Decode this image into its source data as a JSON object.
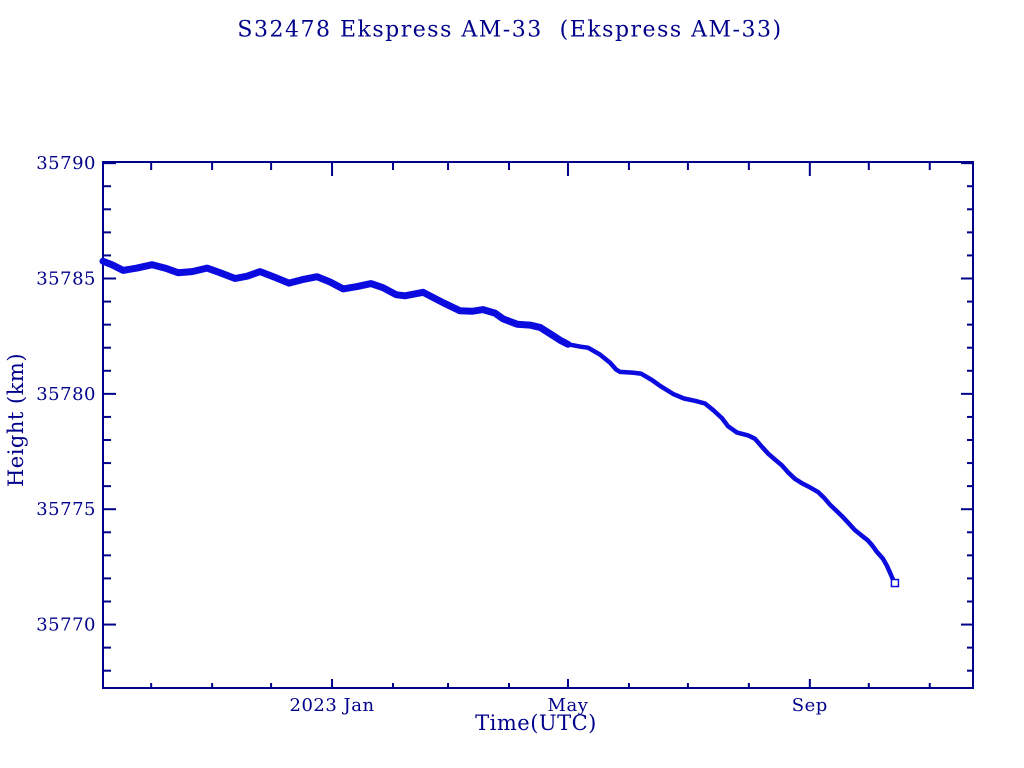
{
  "colors": {
    "background": "#ffffff",
    "axis": "#00008b",
    "text": "#00008b",
    "series": "#0b0bdf"
  },
  "chart_data": {
    "type": "line",
    "title": "S32478 Ekspress AM-33  (Ekspress AM-33)",
    "xlabel": "Time(UTC)",
    "ylabel": "Height (km)",
    "x_unit": "days since 2023-01-01",
    "xlim": [
      -116.5,
      326
    ],
    "ylim": [
      35767.25,
      35790.05
    ],
    "grid": false,
    "legend": "none",
    "x_major_ticks": [
      {
        "day": 0,
        "label": "2023 Jan"
      },
      {
        "day": 120,
        "label": "May"
      },
      {
        "day": 243,
        "label": "Sep"
      }
    ],
    "x_minor_ticks_days": [
      -92,
      -61,
      -31,
      31,
      59,
      90,
      151,
      181,
      212,
      273,
      304
    ],
    "y_major_ticks": [
      35790,
      35785,
      35780,
      35775,
      35770
    ],
    "y_minor_step": 1,
    "series": [
      {
        "name": "height",
        "marker": "open-square",
        "points": [
          [
            -116.5,
            35785.75
          ],
          [
            -111.9,
            35785.6
          ],
          [
            -106.3,
            35785.35
          ],
          [
            -99.2,
            35785.45
          ],
          [
            -91.5,
            35785.6
          ],
          [
            -84.9,
            35785.45
          ],
          [
            -78.3,
            35785.25
          ],
          [
            -71.2,
            35785.3
          ],
          [
            -63.6,
            35785.45
          ],
          [
            -57.0,
            35785.25
          ],
          [
            -49.3,
            35785.0
          ],
          [
            -43.2,
            35785.1
          ],
          [
            -36.6,
            35785.3
          ],
          [
            -29.0,
            35785.05
          ],
          [
            -21.9,
            35784.8
          ],
          [
            -15.3,
            35784.95
          ],
          [
            -7.6,
            35785.08
          ],
          [
            -1.0,
            35784.85
          ],
          [
            5.6,
            35784.55
          ],
          [
            12.7,
            35784.65
          ],
          [
            19.8,
            35784.78
          ],
          [
            25.9,
            35784.6
          ],
          [
            32.6,
            35784.3
          ],
          [
            37.1,
            35784.25
          ],
          [
            46.3,
            35784.4
          ],
          [
            56.5,
            35783.95
          ],
          [
            65.1,
            35783.6
          ],
          [
            71.2,
            35783.58
          ],
          [
            76.8,
            35783.65
          ],
          [
            82.9,
            35783.5
          ],
          [
            87.0,
            35783.25
          ],
          [
            94.1,
            35783.02
          ],
          [
            100.7,
            35782.98
          ],
          [
            105.8,
            35782.88
          ],
          [
            111.9,
            35782.55
          ],
          [
            115.9,
            35782.33
          ],
          [
            120.0,
            35782.15
          ],
          [
            126.1,
            35782.05
          ],
          [
            130.2,
            35782.0
          ],
          [
            136.3,
            35781.7
          ],
          [
            141.4,
            35781.35
          ],
          [
            144.5,
            35781.05
          ],
          [
            146.5,
            35780.95
          ],
          [
            152.6,
            35780.92
          ],
          [
            157.1,
            35780.88
          ],
          [
            162.7,
            35780.6
          ],
          [
            166.8,
            35780.35
          ],
          [
            173.4,
            35780.0
          ],
          [
            179.0,
            35779.8
          ],
          [
            184.6,
            35779.7
          ],
          [
            189.7,
            35779.58
          ],
          [
            193.8,
            35779.3
          ],
          [
            198.3,
            35778.95
          ],
          [
            201.4,
            35778.6
          ],
          [
            206.0,
            35778.32
          ],
          [
            211.6,
            35778.2
          ],
          [
            215.1,
            35778.05
          ],
          [
            218.7,
            35777.7
          ],
          [
            221.7,
            35777.42
          ],
          [
            225.3,
            35777.15
          ],
          [
            228.8,
            35776.9
          ],
          [
            231.9,
            35776.6
          ],
          [
            235.4,
            35776.32
          ],
          [
            239.5,
            35776.1
          ],
          [
            243.0,
            35775.95
          ],
          [
            247.1,
            35775.75
          ],
          [
            250.2,
            35775.5
          ],
          [
            253.2,
            35775.2
          ],
          [
            256.3,
            35774.95
          ],
          [
            259.3,
            35774.7
          ],
          [
            262.4,
            35774.42
          ],
          [
            265.9,
            35774.1
          ],
          [
            269.5,
            35773.85
          ],
          [
            272.5,
            35773.65
          ],
          [
            274.6,
            35773.45
          ],
          [
            277.1,
            35773.15
          ],
          [
            280.2,
            35772.85
          ],
          [
            282.2,
            35772.55
          ],
          [
            283.8,
            35772.25
          ],
          [
            285.3,
            35771.95
          ],
          [
            286.3,
            35771.8
          ]
        ]
      }
    ]
  }
}
